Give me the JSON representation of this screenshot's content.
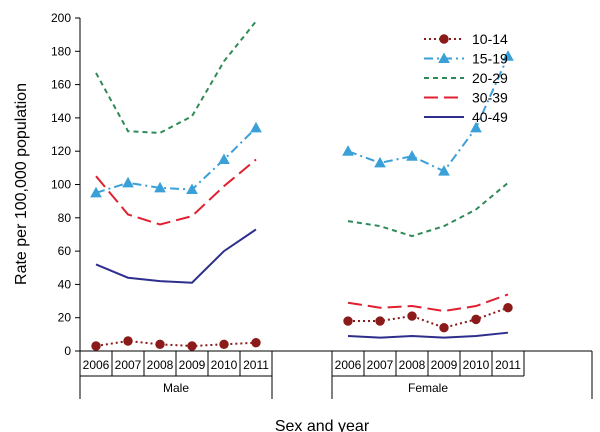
{
  "chart_data": {
    "type": "line",
    "title": "",
    "xlabel": "Sex and year",
    "ylabel": "Rate per 100,000 population",
    "ylim": [
      0,
      200
    ],
    "yticks": [
      0,
      20,
      40,
      60,
      80,
      100,
      120,
      140,
      160,
      180,
      200
    ],
    "grid": false,
    "legend_position": "top-right",
    "groups": [
      {
        "label": "Male",
        "categories": [
          "2006",
          "2007",
          "2008",
          "2009",
          "2010",
          "2011"
        ]
      },
      {
        "label": "Female",
        "categories": [
          "2006",
          "2007",
          "2008",
          "2009",
          "2010",
          "2011"
        ]
      }
    ],
    "series": [
      {
        "name": "10-14",
        "color": "#8b1a1a",
        "dash": "dot",
        "marker": "circle",
        "values": [
          [
            3,
            6,
            4,
            3,
            4,
            5
          ],
          [
            18,
            18,
            21,
            14,
            19,
            26
          ]
        ]
      },
      {
        "name": "15-19",
        "color": "#3ba0d8",
        "dash": "dashdot",
        "marker": "triangle",
        "values": [
          [
            95,
            101,
            98,
            97,
            115,
            134
          ],
          [
            120,
            113,
            117,
            108,
            134,
            177
          ]
        ]
      },
      {
        "name": "20-29",
        "color": "#2e8b57",
        "dash": "short",
        "marker": "none",
        "values": [
          [
            167,
            132,
            131,
            141,
            174,
            198
          ],
          [
            78,
            75,
            69,
            75,
            85,
            101
          ]
        ]
      },
      {
        "name": "30-39",
        "color": "#e02030",
        "dash": "long",
        "marker": "none",
        "values": [
          [
            105,
            82,
            76,
            81,
            99,
            115
          ],
          [
            29,
            26,
            27,
            24,
            27,
            34
          ]
        ]
      },
      {
        "name": "40-49",
        "color": "#2e2e8c",
        "dash": "solid",
        "marker": "none",
        "values": [
          [
            52,
            44,
            42,
            41,
            60,
            73
          ],
          [
            9,
            8,
            9,
            8,
            9,
            11
          ]
        ]
      }
    ]
  }
}
